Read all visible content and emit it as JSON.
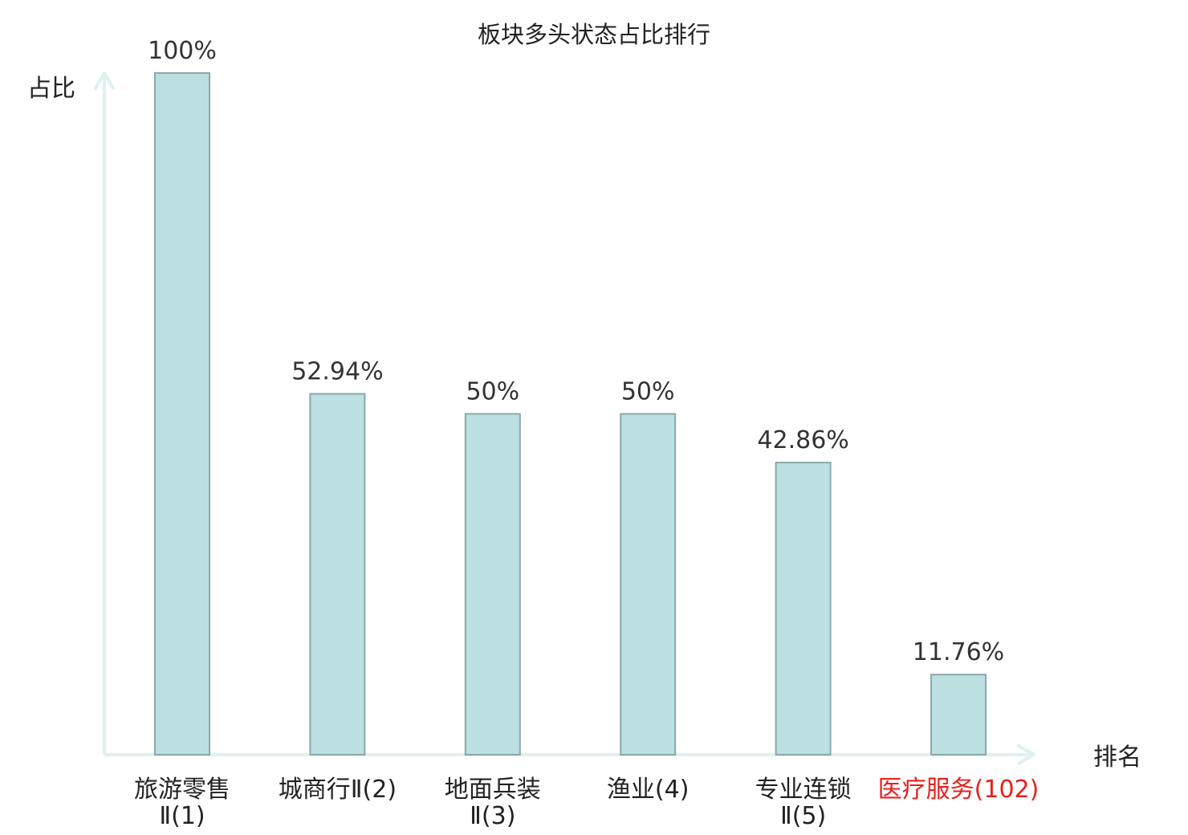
{
  "chart_data": {
    "type": "bar",
    "title": "板块多头状态占比排行",
    "ylabel": "占比",
    "xlabel": "排名",
    "ylim": [
      0,
      100
    ],
    "grid": false,
    "categories": [
      [
        "旅游零售",
        "Ⅱ(1)"
      ],
      [
        "城商行Ⅱ(2)"
      ],
      [
        "地面兵装",
        "Ⅱ(3)"
      ],
      [
        "渔业(4)"
      ],
      [
        "专业连锁",
        "Ⅱ(5)"
      ],
      [
        "医疗服务(102)"
      ]
    ],
    "values": [
      100,
      52.94,
      50,
      50,
      42.86,
      11.76
    ],
    "value_labels": [
      "100%",
      "52.94%",
      "50%",
      "50%",
      "42.86%",
      "11.76%"
    ],
    "highlight_index": 5,
    "colors": {
      "bar_fill": "#bce0e2",
      "bar_stroke": "#8aa8ab",
      "axis": "#dff1ef",
      "text": "#222222",
      "value_text": "#333333",
      "highlight": "#e8201b"
    }
  }
}
